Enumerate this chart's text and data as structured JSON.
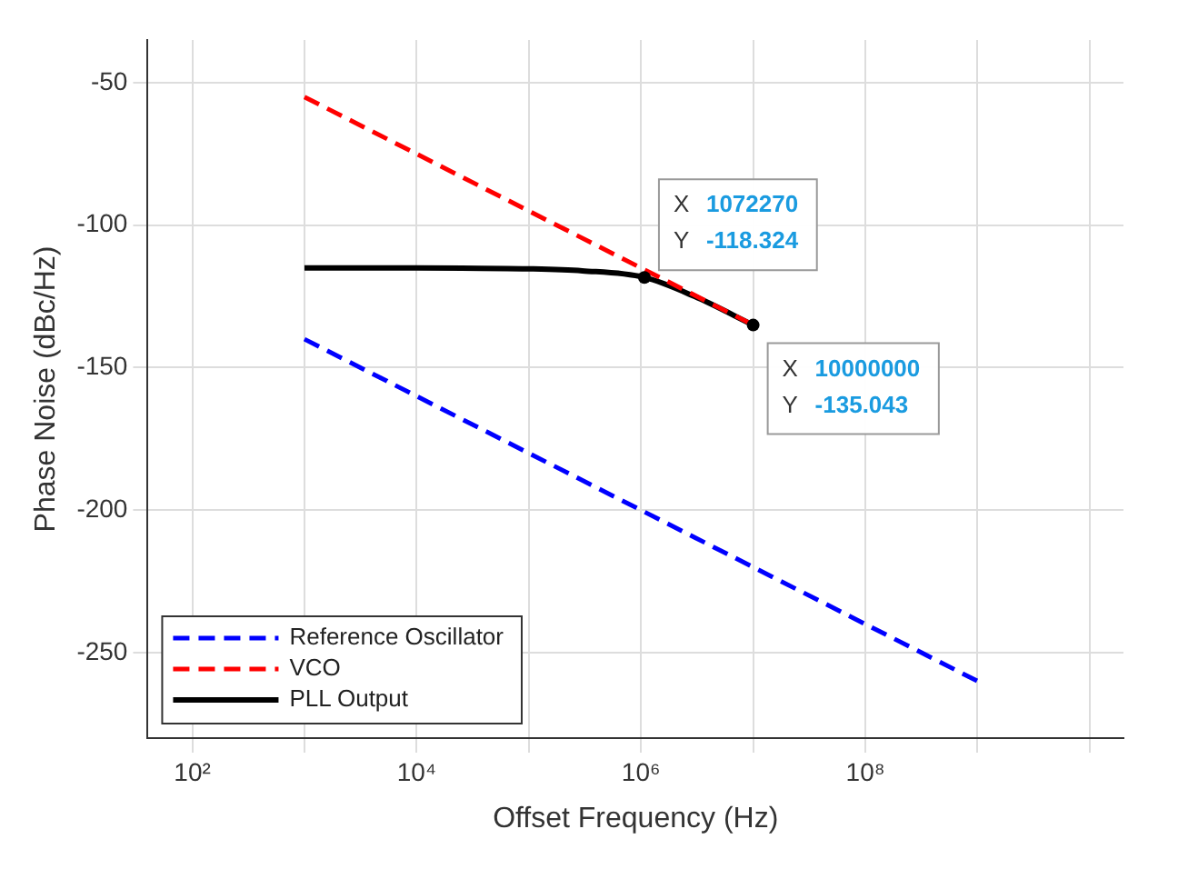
{
  "chart_data": {
    "type": "line",
    "xlabel": "Offset Frequency (Hz)",
    "ylabel": "Phase Noise (dBc/Hz)",
    "log": "x",
    "xlim": [
      40,
      20000000000
    ],
    "xticks": [
      {
        "value": 100,
        "label": "10²"
      },
      {
        "value": 1000,
        "label": null
      },
      {
        "value": 10000,
        "label": "10⁴"
      },
      {
        "value": 100000,
        "label": null
      },
      {
        "value": 1000000,
        "label": "10⁶"
      },
      {
        "value": 10000000,
        "label": null
      },
      {
        "value": 100000000,
        "label": "10⁸"
      },
      {
        "value": 1000000000,
        "label": null
      },
      {
        "value": 10000000000,
        "label": null
      }
    ],
    "ylim": [
      -280,
      -35
    ],
    "yticks": [
      -250,
      -200,
      -150,
      -100,
      -50
    ],
    "grid": true,
    "legend": "bottom left",
    "marker": "none",
    "series": [
      {
        "name": "Reference Oscillator",
        "color": "#0000ff",
        "line_style": "dashed",
        "x": [
          1000,
          1000000000
        ],
        "values": [
          -140,
          -260
        ]
      },
      {
        "name": "VCO",
        "color": "#ff0000",
        "line_style": "dashed",
        "x": [
          1000,
          10000000
        ],
        "values": [
          -55,
          -135
        ]
      },
      {
        "name": "PLL Output",
        "color": "#000000",
        "line_style": "solid",
        "x": [
          1000,
          10000,
          100000,
          300000,
          1072270,
          3000000,
          10000000
        ],
        "values": [
          -115,
          -115,
          -115.3,
          -116,
          -118.324,
          -125,
          -135.043
        ]
      }
    ],
    "annotations": [
      {
        "text": "X 1072270\nY -118.324",
        "x": 1072270,
        "y": -118.324
      },
      {
        "text": "X 10000000\nY -135.043",
        "x": 10000000,
        "y": -135.043
      }
    ]
  }
}
